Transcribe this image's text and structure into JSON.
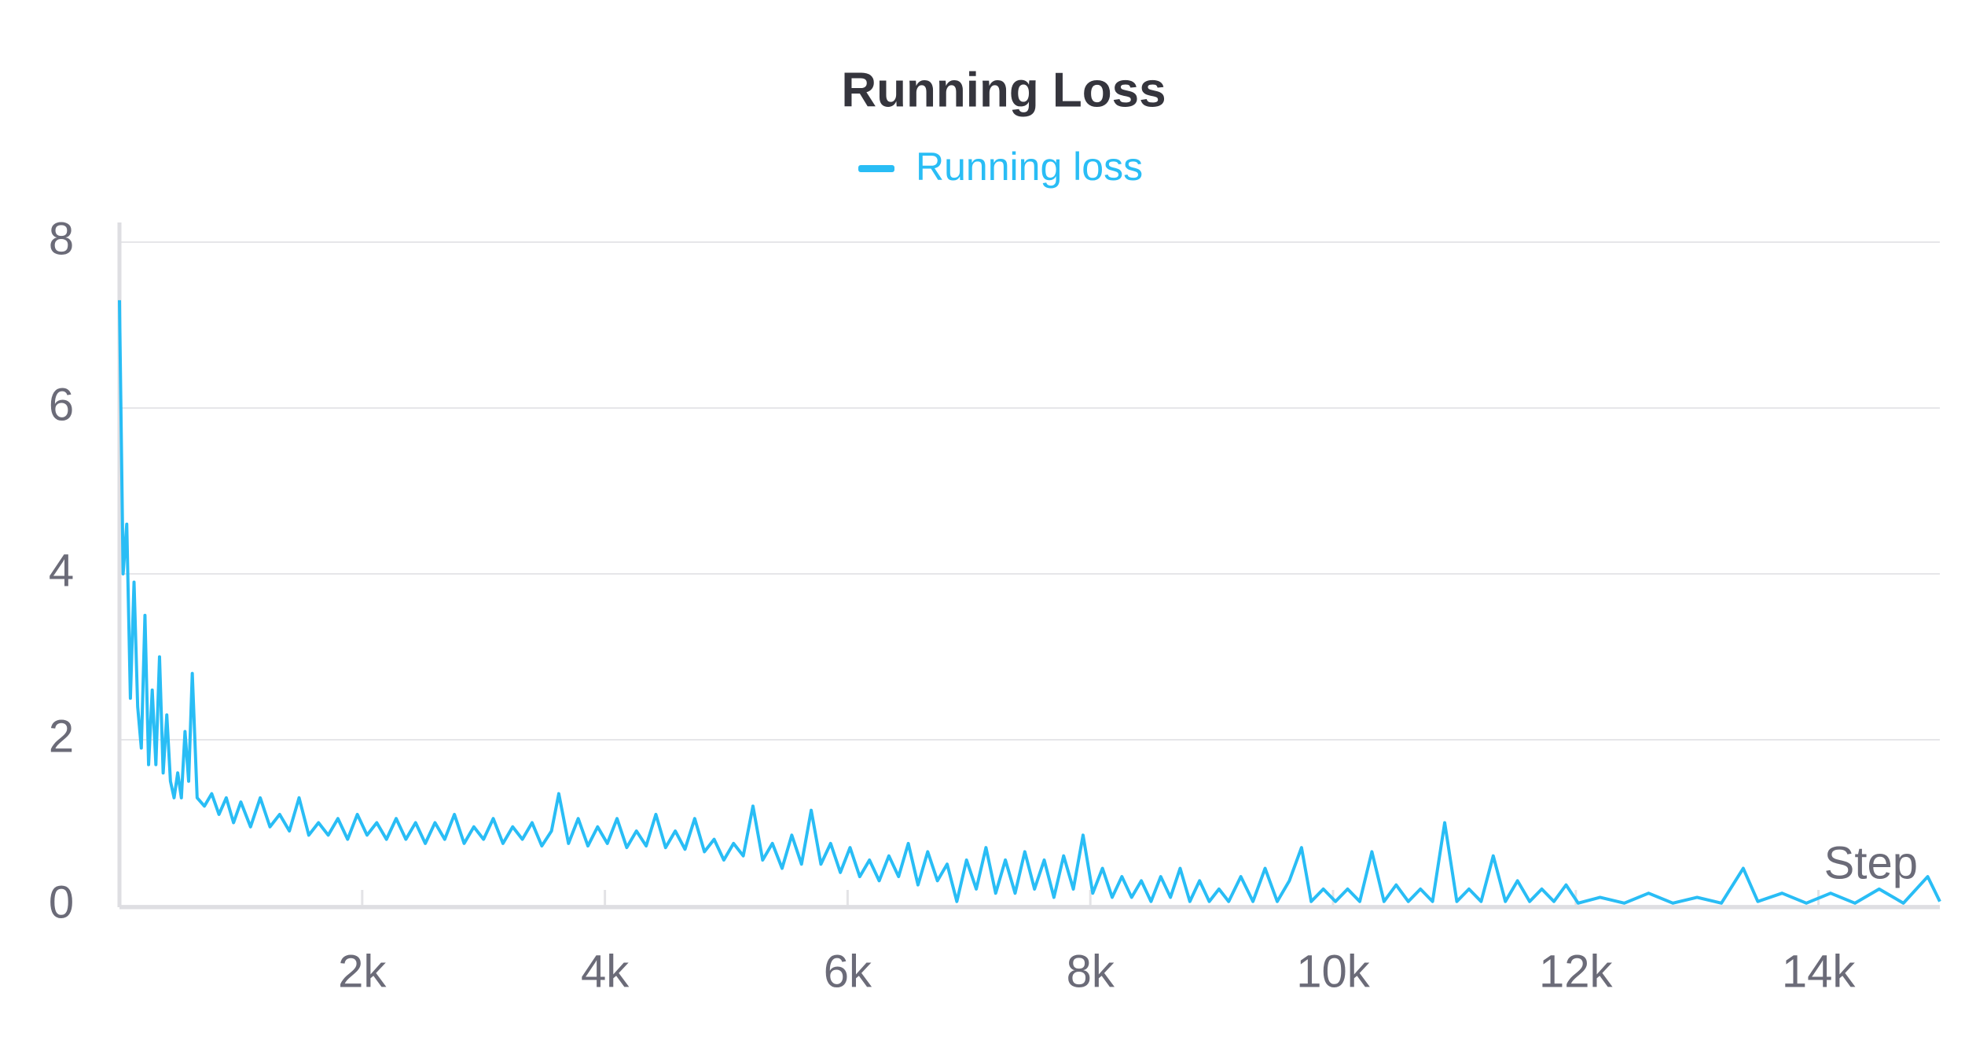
{
  "chart_data": {
    "type": "line",
    "title": "Running Loss",
    "x_label": "Step",
    "xlim": [
      0,
      15000
    ],
    "ylim": [
      0,
      8
    ],
    "xticks": [
      {
        "value": 2000,
        "label": "2k"
      },
      {
        "value": 4000,
        "label": "4k"
      },
      {
        "value": 6000,
        "label": "6k"
      },
      {
        "value": 8000,
        "label": "8k"
      },
      {
        "value": 10000,
        "label": "10k"
      },
      {
        "value": 12000,
        "label": "12k"
      },
      {
        "value": 14000,
        "label": "14k"
      }
    ],
    "yticks": [
      0,
      2,
      4,
      6,
      8
    ],
    "grid": true,
    "legend": "top",
    "x": [
      0,
      30,
      60,
      90,
      120,
      150,
      180,
      210,
      240,
      270,
      300,
      330,
      360,
      390,
      420,
      450,
      480,
      510,
      540,
      570,
      600,
      640,
      700,
      760,
      820,
      880,
      940,
      1000,
      1080,
      1160,
      1240,
      1320,
      1400,
      1480,
      1560,
      1640,
      1720,
      1800,
      1880,
      1960,
      2040,
      2120,
      2200,
      2280,
      2360,
      2440,
      2520,
      2600,
      2680,
      2760,
      2840,
      2920,
      3000,
      3080,
      3160,
      3240,
      3320,
      3400,
      3480,
      3560,
      3620,
      3700,
      3780,
      3860,
      3940,
      4020,
      4100,
      4180,
      4260,
      4340,
      4420,
      4500,
      4580,
      4660,
      4740,
      4820,
      4900,
      4980,
      5060,
      5140,
      5220,
      5300,
      5380,
      5460,
      5540,
      5620,
      5700,
      5780,
      5860,
      5940,
      6020,
      6100,
      6180,
      6260,
      6340,
      6420,
      6500,
      6580,
      6660,
      6740,
      6820,
      6900,
      6980,
      7060,
      7140,
      7220,
      7300,
      7380,
      7460,
      7540,
      7620,
      7700,
      7780,
      7860,
      7940,
      8020,
      8100,
      8180,
      8260,
      8340,
      8420,
      8500,
      8580,
      8660,
      8740,
      8820,
      8900,
      8980,
      9060,
      9140,
      9240,
      9340,
      9440,
      9540,
      9640,
      9740,
      9820,
      9920,
      10020,
      10120,
      10220,
      10320,
      10420,
      10520,
      10620,
      10720,
      10820,
      10920,
      11020,
      11120,
      11220,
      11320,
      11420,
      11520,
      11620,
      11720,
      11820,
      11920,
      12020,
      12200,
      12400,
      12600,
      12800,
      13000,
      13200,
      13380,
      13500,
      13700,
      13900,
      14100,
      14300,
      14500,
      14700,
      14900,
      15000
    ],
    "series": [
      {
        "name": "Running loss",
        "color": "#29bdf5",
        "values": [
          7.3,
          4.0,
          4.6,
          2.5,
          3.9,
          2.4,
          1.9,
          3.5,
          1.7,
          2.6,
          1.7,
          3.0,
          1.6,
          2.3,
          1.5,
          1.3,
          1.6,
          1.3,
          2.1,
          1.5,
          2.8,
          1.3,
          1.2,
          1.35,
          1.1,
          1.3,
          1.0,
          1.25,
          0.95,
          1.3,
          0.95,
          1.1,
          0.9,
          1.3,
          0.85,
          1.0,
          0.85,
          1.05,
          0.8,
          1.1,
          0.85,
          1.0,
          0.8,
          1.05,
          0.8,
          1.0,
          0.75,
          1.0,
          0.8,
          1.1,
          0.75,
          0.95,
          0.8,
          1.05,
          0.75,
          0.95,
          0.8,
          1.0,
          0.72,
          0.9,
          1.35,
          0.75,
          1.05,
          0.72,
          0.95,
          0.75,
          1.05,
          0.7,
          0.9,
          0.72,
          1.1,
          0.7,
          0.9,
          0.68,
          1.05,
          0.65,
          0.8,
          0.55,
          0.75,
          0.6,
          1.2,
          0.55,
          0.75,
          0.45,
          0.85,
          0.5,
          1.15,
          0.5,
          0.75,
          0.4,
          0.7,
          0.35,
          0.55,
          0.3,
          0.6,
          0.35,
          0.75,
          0.25,
          0.65,
          0.3,
          0.5,
          0.05,
          0.55,
          0.2,
          0.7,
          0.15,
          0.55,
          0.15,
          0.65,
          0.2,
          0.55,
          0.1,
          0.6,
          0.2,
          0.85,
          0.15,
          0.45,
          0.1,
          0.35,
          0.1,
          0.3,
          0.05,
          0.35,
          0.1,
          0.45,
          0.05,
          0.3,
          0.05,
          0.2,
          0.05,
          0.35,
          0.05,
          0.45,
          0.05,
          0.3,
          0.7,
          0.05,
          0.2,
          0.05,
          0.2,
          0.05,
          0.65,
          0.05,
          0.25,
          0.05,
          0.2,
          0.05,
          1.0,
          0.05,
          0.2,
          0.05,
          0.6,
          0.05,
          0.3,
          0.05,
          0.2,
          0.05,
          0.25,
          0.03,
          0.1,
          0.03,
          0.15,
          0.03,
          0.1,
          0.03,
          0.45,
          0.05,
          0.15,
          0.03,
          0.15,
          0.03,
          0.2,
          0.03,
          0.35,
          0.05
        ]
      }
    ]
  }
}
